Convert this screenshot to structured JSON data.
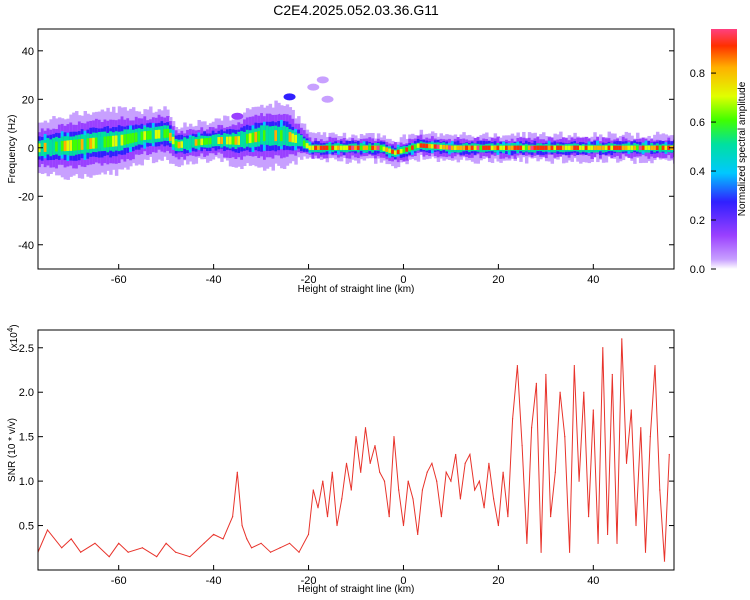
{
  "title": "C2E4.2025.052.03.36.G11",
  "colors": {
    "snr_line": "#e8332b",
    "axis": "#000000",
    "colormap": [
      "#c8a0ff",
      "#9a40ff",
      "#3020ff",
      "#00c8ff",
      "#00e0a0",
      "#40ff00",
      "#e0ff00",
      "#ffb000",
      "#ff3000",
      "#ff4080"
    ]
  },
  "chart_data": [
    {
      "type": "heatmap",
      "title": "C2E4.2025.052.03.36.G11",
      "xlabel": "Height of straight line (km)",
      "ylabel": "Frequency (Hz)",
      "xlim": [
        -77,
        57
      ],
      "ylim": [
        -50,
        49
      ],
      "xticks": [
        "-60",
        "-40",
        "-20",
        "0",
        "20",
        "40"
      ],
      "yticks": [
        "-40",
        "-20",
        "0",
        "20",
        "40"
      ],
      "colorbar": {
        "label": "Normalized spectral amplitude",
        "range": [
          0,
          0.98
        ],
        "ticks": [
          "0.0",
          "0.2",
          "0.4",
          "0.6",
          "0.8"
        ]
      },
      "ridge": {
        "description_free_values": true,
        "x": [
          -77,
          -70,
          -65,
          -60,
          -55,
          -50,
          -48,
          -45,
          -40,
          -35,
          -30,
          -25,
          -22,
          -20,
          -15,
          -10,
          -5,
          -2,
          0,
          3,
          10,
          20,
          30,
          40,
          50,
          56
        ],
        "center_hz": [
          0,
          1,
          2,
          3,
          5,
          6,
          1,
          2,
          3,
          3,
          5,
          5,
          3,
          0,
          0,
          0,
          0,
          -2,
          -1,
          1,
          0,
          0,
          0,
          0,
          0,
          0
        ],
        "halfwidth_hz": [
          4,
          5,
          5,
          5,
          4,
          4,
          3,
          3,
          3,
          4,
          5,
          5,
          3,
          2,
          2,
          2,
          2,
          2,
          2,
          2,
          2,
          2,
          2,
          2,
          2,
          2
        ]
      },
      "isolated_blobs": [
        {
          "x": -24,
          "y": 21,
          "amp": 0.25
        },
        {
          "x": -27,
          "y": 15,
          "amp": 0.12
        },
        {
          "x": -35,
          "y": 13,
          "amp": 0.15
        },
        {
          "x": -19,
          "y": 25,
          "amp": 0.06
        },
        {
          "x": -17,
          "y": 28,
          "amp": 0.05
        },
        {
          "x": -16,
          "y": 20,
          "amp": 0.05
        }
      ]
    },
    {
      "type": "line",
      "xlabel": "Height of straight line (km)",
      "ylabel": "SNR (10 * v/v)",
      "y_multiplier": "(x10^4)",
      "xlim": [
        -77,
        57
      ],
      "ylim": [
        0,
        2.7
      ],
      "xticks": [
        "-60",
        "-40",
        "-20",
        "0",
        "20",
        "40"
      ],
      "yticks": [
        "0.5",
        "1.0",
        "1.5",
        "2.0",
        "2.5"
      ],
      "series": [
        {
          "x": [
            -77,
            -75,
            -72,
            -70,
            -68,
            -65,
            -62,
            -60,
            -58,
            -55,
            -52,
            -50,
            -48,
            -45,
            -42,
            -40,
            -38,
            -36,
            -35,
            -34,
            -33,
            -32,
            -30,
            -28,
            -26,
            -24,
            -22,
            -20,
            -19,
            -18,
            -17,
            -16,
            -15,
            -14,
            -13,
            -12,
            -11,
            -10,
            -9,
            -8,
            -7,
            -6,
            -5,
            -4,
            -3,
            -2,
            -1,
            0,
            1,
            2,
            3,
            4,
            5,
            6,
            7,
            8,
            9,
            10,
            11,
            12,
            13,
            14,
            15,
            16,
            17,
            18,
            19,
            20,
            21,
            22,
            23,
            24,
            25,
            26,
            27,
            28,
            29,
            30,
            31,
            32,
            33,
            34,
            35,
            36,
            37,
            38,
            39,
            40,
            41,
            42,
            43,
            44,
            45,
            46,
            47,
            48,
            49,
            50,
            51,
            52,
            53,
            54,
            55,
            56
          ],
          "values": [
            0.2,
            0.45,
            0.25,
            0.35,
            0.2,
            0.3,
            0.15,
            0.3,
            0.2,
            0.25,
            0.15,
            0.3,
            0.2,
            0.15,
            0.3,
            0.4,
            0.35,
            0.6,
            1.1,
            0.5,
            0.35,
            0.25,
            0.3,
            0.2,
            0.25,
            0.3,
            0.2,
            0.4,
            0.9,
            0.7,
            1.0,
            0.6,
            1.1,
            0.5,
            0.8,
            1.2,
            0.9,
            1.5,
            1.1,
            1.6,
            1.2,
            1.4,
            1.1,
            1.0,
            0.6,
            1.5,
            0.9,
            0.5,
            1.0,
            0.8,
            0.4,
            0.9,
            1.1,
            1.2,
            1.0,
            0.6,
            1.1,
            1.0,
            1.3,
            0.8,
            1.2,
            1.3,
            0.9,
            1.0,
            0.7,
            1.2,
            0.8,
            0.5,
            1.1,
            0.6,
            1.7,
            2.3,
            1.4,
            0.3,
            1.6,
            2.1,
            0.2,
            2.2,
            0.6,
            1.1,
            2.0,
            1.5,
            0.2,
            2.3,
            1.0,
            2.0,
            0.6,
            1.8,
            0.3,
            2.5,
            0.4,
            2.2,
            0.3,
            2.6,
            1.2,
            1.8,
            0.5,
            1.6,
            0.2,
            1.5,
            2.3,
            0.9,
            0.1,
            1.3
          ]
        }
      ]
    }
  ]
}
